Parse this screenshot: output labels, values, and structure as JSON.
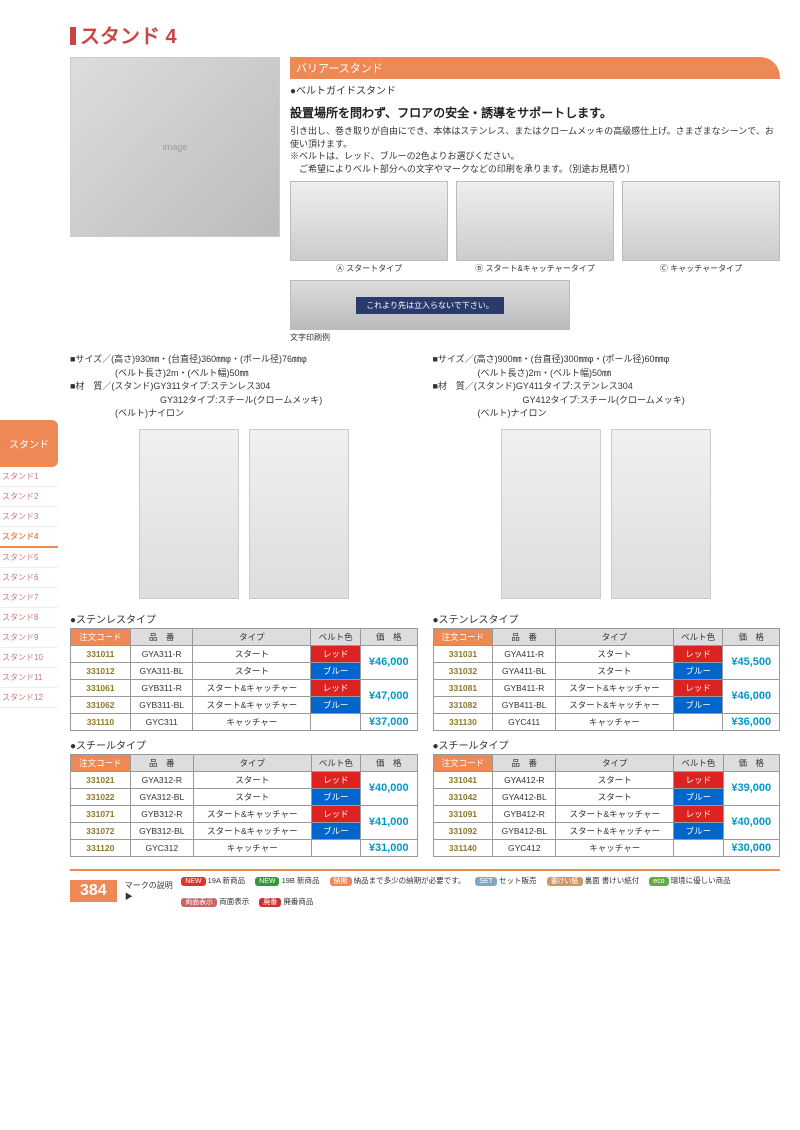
{
  "page_title": "スタンド 4",
  "header_band": "バリアースタンド",
  "subhead": "●ベルトガイドスタンド",
  "desc_bold": "設置場所を問わず、フロアの安全・誘導をサポートします。",
  "desc_lines": [
    "引き出し、巻き取りが自由にでき、本体はステンレス、またはクロームメッキの高級感仕上げ。さまざまなシーンで、お使い頂けます。",
    "※ベルトは、レッド、ブルーの2色よりお選びください。",
    "　ご希望によりベルト部分への文字やマークなどの印刷を承ります。（別途お見積り）"
  ],
  "type_labels": [
    "Ⓐ スタートタイプ",
    "Ⓑ スタート&キャッチャータイプ",
    "Ⓒ キャッチャータイプ"
  ],
  "print_example_label": "文字印刷例",
  "print_example_text": "これより先は立入らないで下さい。",
  "left_spec": [
    "■サイズ／(高さ)930㎜・(台直径)360㎜φ・(ポール径)76㎜φ",
    "　　　　　(ベルト長さ)2m・(ベルト幅)50㎜",
    "■材　質／(スタンド)GY311タイプ:ステンレス304",
    "　　　　　　　　　　GY312タイプ:スチール(クロームメッキ)",
    "　　　　　(ベルト)ナイロン"
  ],
  "right_spec": [
    "■サイズ／(高さ)900㎜・(台直径)300㎜φ・(ポール径)60㎜φ",
    "　　　　　(ベルト長さ)2m・(ベルト幅)50㎜",
    "■材　質／(スタンド)GY411タイプ:ステンレス304",
    "　　　　　　　　　　GY412タイプ:スチール(クロームメッキ)",
    "　　　　　(ベルト)ナイロン"
  ],
  "table_headers": [
    "注文コード",
    "品　番",
    "タイプ",
    "ベルト色",
    "価　格"
  ],
  "tables": [
    {
      "title": "●ステンレスタイプ",
      "rows": [
        {
          "code": "331011",
          "model": "GYA311-R",
          "type": "スタート",
          "belt": "レッド",
          "belt_color": "red",
          "price": "¥46,000",
          "rowspan": 2
        },
        {
          "code": "331012",
          "model": "GYA311-BL",
          "type": "スタート",
          "belt": "ブルー",
          "belt_color": "blue"
        },
        {
          "code": "331061",
          "model": "GYB311-R",
          "type": "スタート&キャッチャー",
          "belt": "レッド",
          "belt_color": "red",
          "price": "¥47,000",
          "rowspan": 2
        },
        {
          "code": "331062",
          "model": "GYB311-BL",
          "type": "スタート&キャッチャー",
          "belt": "ブルー",
          "belt_color": "blue"
        },
        {
          "code": "331110",
          "model": "GYC311",
          "type": "キャッチャー",
          "belt": "",
          "belt_color": "",
          "price": "¥37,000",
          "rowspan": 1
        }
      ]
    },
    {
      "title": "●スチールタイプ",
      "rows": [
        {
          "code": "331021",
          "model": "GYA312-R",
          "type": "スタート",
          "belt": "レッド",
          "belt_color": "red",
          "price": "¥40,000",
          "rowspan": 2
        },
        {
          "code": "331022",
          "model": "GYA312-BL",
          "type": "スタート",
          "belt": "ブルー",
          "belt_color": "blue"
        },
        {
          "code": "331071",
          "model": "GYB312-R",
          "type": "スタート&キャッチャー",
          "belt": "レッド",
          "belt_color": "red",
          "price": "¥41,000",
          "rowspan": 2
        },
        {
          "code": "331072",
          "model": "GYB312-BL",
          "type": "スタート&キャッチャー",
          "belt": "ブルー",
          "belt_color": "blue"
        },
        {
          "code": "331120",
          "model": "GYC312",
          "type": "キャッチャー",
          "belt": "",
          "belt_color": "",
          "price": "¥31,000",
          "rowspan": 1
        }
      ]
    },
    {
      "title": "●ステンレスタイプ",
      "rows": [
        {
          "code": "331031",
          "model": "GYA411-R",
          "type": "スタート",
          "belt": "レッド",
          "belt_color": "red",
          "price": "¥45,500",
          "rowspan": 2
        },
        {
          "code": "331032",
          "model": "GYA411-BL",
          "type": "スタート",
          "belt": "ブルー",
          "belt_color": "blue"
        },
        {
          "code": "331081",
          "model": "GYB411-R",
          "type": "スタート&キャッチャー",
          "belt": "レッド",
          "belt_color": "red",
          "price": "¥46,000",
          "rowspan": 2
        },
        {
          "code": "331082",
          "model": "GYB411-BL",
          "type": "スタート&キャッチャー",
          "belt": "ブルー",
          "belt_color": "blue"
        },
        {
          "code": "331130",
          "model": "GYC411",
          "type": "キャッチャー",
          "belt": "",
          "belt_color": "",
          "price": "¥36,000",
          "rowspan": 1
        }
      ]
    },
    {
      "title": "●スチールタイプ",
      "rows": [
        {
          "code": "331041",
          "model": "GYA412-R",
          "type": "スタート",
          "belt": "レッド",
          "belt_color": "red",
          "price": "¥39,000",
          "rowspan": 2
        },
        {
          "code": "331042",
          "model": "GYA412-BL",
          "type": "スタート",
          "belt": "ブルー",
          "belt_color": "blue"
        },
        {
          "code": "331091",
          "model": "GYB412-R",
          "type": "スタート&キャッチャー",
          "belt": "レッド",
          "belt_color": "red",
          "price": "¥40,000",
          "rowspan": 2
        },
        {
          "code": "331092",
          "model": "GYB412-BL",
          "type": "スタート&キャッチャー",
          "belt": "ブルー",
          "belt_color": "blue"
        },
        {
          "code": "331140",
          "model": "GYC412",
          "type": "キャッチャー",
          "belt": "",
          "belt_color": "",
          "price": "¥30,000",
          "rowspan": 1
        }
      ]
    }
  ],
  "sidebar_main": "スタンド",
  "sidebar_items": [
    "スタンド1",
    "スタンド2",
    "スタンド3",
    "スタンド4",
    "スタンド5",
    "スタンド6",
    "スタンド7",
    "スタンド8",
    "スタンド9",
    "スタンド10",
    "スタンド11",
    "スタンド12"
  ],
  "sidebar_active": 3,
  "page_num": "384",
  "footer_label": "マークの説明▶",
  "legend": [
    {
      "badge": "NEW",
      "color": "#d33",
      "text": "19A 新商品"
    },
    {
      "badge": "NEW",
      "color": "#393",
      "text": "19B 新商品"
    },
    {
      "badge": "納期",
      "color": "#e85",
      "text": "納品まで多少の納期が必要です。"
    },
    {
      "badge": "SET",
      "color": "#7ac",
      "text": "セット販売"
    },
    {
      "badge": "書けい紙",
      "color": "#c96",
      "text": "裏面 書けい紙付"
    },
    {
      "badge": "eco",
      "color": "#6a4",
      "text": "環境に優しい商品"
    },
    {
      "badge": "両面表示",
      "color": "#c66",
      "text": "両面表示"
    },
    {
      "badge": "廃番",
      "color": "#c33",
      "text": "廃番商品"
    }
  ]
}
